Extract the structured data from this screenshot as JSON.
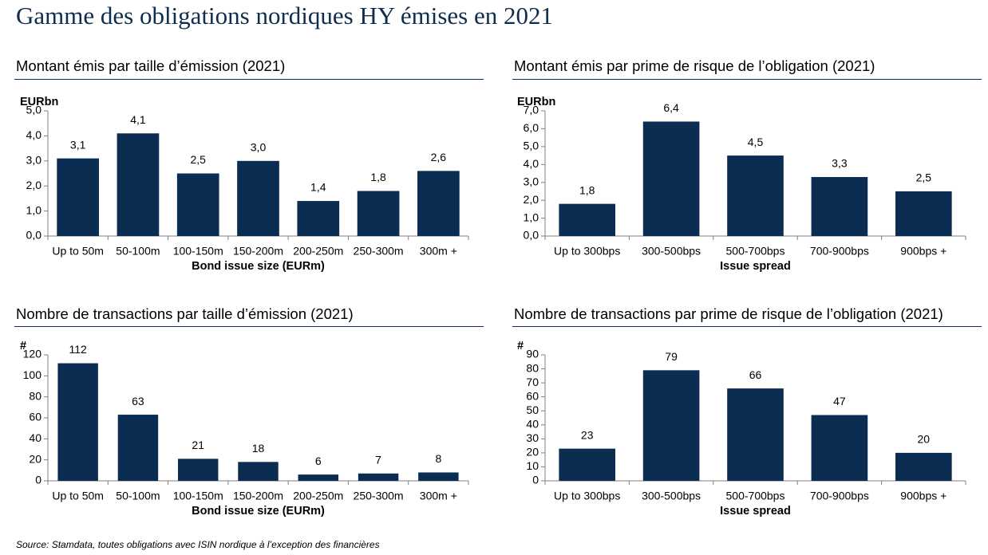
{
  "page": {
    "title": "Gamme des obligations nordiques HY émises en 2021",
    "source": "Source: Stamdata, toutes obligations avec ISIN nordique à l’exception des financières"
  },
  "colors": {
    "bar": "#0c2d52",
    "title": "#0f2d4e",
    "axis": "#7f7f7f"
  },
  "panels": {
    "top_left": {
      "title": "Montant émis par taille d’émission (2021)"
    },
    "top_right": {
      "title": "Montant émis par prime de risque de l’obligation (2021)"
    },
    "bottom_left": {
      "title": "Nombre de transactions par taille d’émission (2021)"
    },
    "bottom_right": {
      "title": "Nombre de transactions par prime de risque de l’obligation (2021)"
    }
  },
  "chart_data": [
    {
      "type": "bar",
      "unit_label": "EURbn",
      "xlabel": "Bond issue size (EURm)",
      "categories": [
        "Up to 50m",
        "50-100m",
        "100-150m",
        "150-200m",
        "200-250m",
        "250-300m",
        "300m +"
      ],
      "values": [
        3.1,
        4.1,
        2.5,
        3.0,
        1.4,
        1.8,
        2.6
      ],
      "value_labels": [
        "3,1",
        "4,1",
        "2,5",
        "3,0",
        "1,4",
        "1,8",
        "2,6"
      ],
      "yticks": [
        "0,0",
        "1,0",
        "2,0",
        "3,0",
        "4,0",
        "5,0"
      ],
      "ylim": [
        0,
        5
      ],
      "grid": false
    },
    {
      "type": "bar",
      "unit_label": "EURbn",
      "xlabel": "Issue spread",
      "categories": [
        "Up to 300bps",
        "300-500bps",
        "500-700bps",
        "700-900bps",
        "900bps +"
      ],
      "values": [
        1.8,
        6.4,
        4.5,
        3.3,
        2.5
      ],
      "value_labels": [
        "1,8",
        "6,4",
        "4,5",
        "3,3",
        "2,5"
      ],
      "yticks": [
        "0,0",
        "1,0",
        "2,0",
        "3,0",
        "4,0",
        "5,0",
        "6,0",
        "7,0"
      ],
      "ylim": [
        0,
        7
      ],
      "grid": false
    },
    {
      "type": "bar",
      "unit_label": "#",
      "xlabel": "Bond issue size (EURm)",
      "categories": [
        "Up to 50m",
        "50-100m",
        "100-150m",
        "150-200m",
        "200-250m",
        "250-300m",
        "300m +"
      ],
      "values": [
        112,
        63,
        21,
        18,
        6,
        7,
        8
      ],
      "value_labels": [
        "112",
        "63",
        "21",
        "18",
        "6",
        "7",
        "8"
      ],
      "yticks": [
        "0",
        "20",
        "40",
        "60",
        "80",
        "100",
        "120"
      ],
      "ylim": [
        0,
        120
      ],
      "grid": false
    },
    {
      "type": "bar",
      "unit_label": "#",
      "xlabel": "Issue spread",
      "categories": [
        "Up to 300bps",
        "300-500bps",
        "500-700bps",
        "700-900bps",
        "900bps +"
      ],
      "values": [
        23,
        79,
        66,
        47,
        20
      ],
      "value_labels": [
        "23",
        "79",
        "66",
        "47",
        "20"
      ],
      "yticks": [
        "0",
        "10",
        "20",
        "30",
        "40",
        "50",
        "60",
        "70",
        "80",
        "90"
      ],
      "ylim": [
        0,
        90
      ],
      "grid": false
    }
  ]
}
